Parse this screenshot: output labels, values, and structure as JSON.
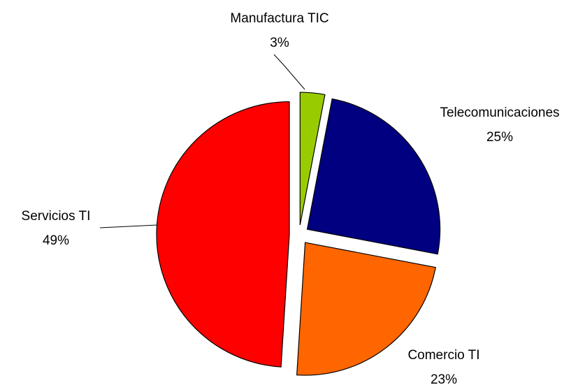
{
  "chart_data": {
    "type": "pie",
    "categories": [
      "Manufactura TIC",
      "Telecomunicaciones",
      "Comercio TI",
      "Servicios TI"
    ],
    "values": [
      3,
      25,
      23,
      49
    ],
    "value_labels": [
      "3%",
      "25%",
      "23%",
      "49%"
    ],
    "colors": [
      "#99cc00",
      "#000080",
      "#ff6600",
      "#ff0000"
    ]
  }
}
